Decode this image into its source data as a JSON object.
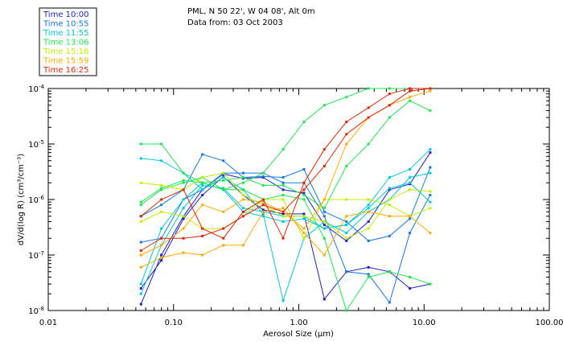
{
  "chart_data": {
    "type": "line",
    "title": "PML, N 50 22', W 04 08', Alt 0m",
    "subtitle": "Data from: 03 Oct 2003",
    "xlabel": "Aerosol Size (μm)",
    "ylabel": "dV/d(log R) (cm³/cm⁻³)",
    "x_scale": "log",
    "y_scale": "log",
    "xlim": [
      0.01,
      100
    ],
    "ylim": [
      1e-08,
      0.0001
    ],
    "x_ticks": [
      {
        "value": 0.01,
        "label": "0.01"
      },
      {
        "value": 0.1,
        "label": "0.10"
      },
      {
        "value": 1,
        "label": "1.00"
      },
      {
        "value": 10,
        "label": "10.00"
      },
      {
        "value": 100,
        "label": "100.00"
      }
    ],
    "y_ticks": [
      {
        "value": 1e-08,
        "mant": "10",
        "exp": "-8"
      },
      {
        "value": 1e-07,
        "mant": "10",
        "exp": "-7"
      },
      {
        "value": 1e-06,
        "mant": "10",
        "exp": "-6"
      },
      {
        "value": 1e-05,
        "mant": "10",
        "exp": "-5"
      },
      {
        "value": 0.0001,
        "mant": "10",
        "exp": "-4"
      }
    ],
    "legend_position": "top-left",
    "x": [
      0.055,
      0.08,
      0.12,
      0.17,
      0.25,
      0.36,
      0.52,
      0.75,
      1.1,
      1.6,
      2.4,
      3.6,
      5.3,
      7.7,
      11.2
    ],
    "series": [
      {
        "name": "Time 10:00",
        "color": "#1e1ec8",
        "values": [
          1.3e-08,
          1e-07,
          5e-07,
          1.5e-06,
          2.9e-06,
          2.4e-06,
          2.5e-06,
          1.5e-06,
          1.3e-06,
          3.5e-07,
          1.8e-07,
          4e-07,
          1.5e-06,
          1.9e-06,
          7e-06
        ]
      },
      {
        "name": "Time 10:00",
        "color": "#1e1ec8",
        "values": [
          2.5e-08,
          8e-08,
          4.5e-07,
          1.2e-06,
          2.6e-06,
          1.2e-06,
          6.5e-07,
          5.5e-07,
          5.5e-07,
          1.6e-08,
          5e-08,
          6e-08,
          5e-08,
          2.5e-08,
          3e-08
        ]
      },
      {
        "name": "Time 10:55",
        "color": "#1478e6",
        "values": [
          5e-07,
          8e-07,
          1.5e-06,
          6.5e-06,
          5e-06,
          2.5e-06,
          2.6e-06,
          2.5e-06,
          3.5e-06,
          6e-07,
          4e-07,
          1.8e-07,
          2.2e-07,
          4.5e-07,
          3.8e-06
        ]
      },
      {
        "name": "Time 10:55",
        "color": "#1478e6",
        "values": [
          1.7e-07,
          2e-07,
          1e-06,
          1.5e-06,
          3e-06,
          3e-06,
          3e-06,
          2e-06,
          2e-06,
          5e-07,
          5e-08,
          4.5e-08,
          1.4e-08,
          2.5e-07,
          1.2e-06
        ]
      },
      {
        "name": "Time 11:55",
        "color": "#00c8dc",
        "values": [
          5.5e-06,
          5e-06,
          3e-06,
          1.5e-06,
          2.5e-06,
          1.5e-06,
          5.5e-07,
          1.5e-08,
          2e-07,
          4e-07,
          2.5e-07,
          6e-07,
          1e-06,
          2.5e-06,
          3e-06
        ]
      },
      {
        "name": "Time 11:55",
        "color": "#00c8dc",
        "values": [
          3e-08,
          3e-07,
          1e-06,
          2e-06,
          1.5e-06,
          6e-07,
          5e-07,
          4e-07,
          4.5e-07,
          3e-07,
          3.5e-07,
          8e-07,
          2.5e-06,
          3.5e-06,
          8e-06
        ]
      },
      {
        "name": "Time 11:55",
        "color": "#00c8dc",
        "values": [
          2e-08,
          1.5e-07,
          7e-07,
          1.8e-06,
          1.6e-06,
          7e-07,
          6e-07,
          5e-07,
          5e-07,
          3e-07,
          3.5e-07,
          7e-07,
          1.6e-06,
          2e-06,
          9e-07
        ]
      },
      {
        "name": "Time 13:06",
        "color": "#1ee650",
        "values": [
          1e-05,
          1e-05,
          3e-06,
          2e-06,
          1.5e-06,
          2e-06,
          3e-06,
          8e-06,
          2.5e-05,
          5e-05,
          7e-05,
          0.0001,
          0.0001,
          0.0001,
          0.0001
        ]
      },
      {
        "name": "Time 13:06",
        "color": "#1ee650",
        "values": [
          8e-07,
          1.5e-06,
          2e-06,
          2.5e-06,
          1.5e-06,
          1.5e-06,
          1e-06,
          1.2e-06,
          1e-06,
          2e-07,
          1e-08,
          4e-08,
          5e-08,
          4e-08,
          3e-08
        ]
      },
      {
        "name": "Time 13:06",
        "color": "#1ee650",
        "values": [
          9e-07,
          1.6e-06,
          2.2e-06,
          2e-06,
          2.2e-06,
          2.5e-06,
          1.8e-06,
          1.8e-06,
          1.2e-06,
          7e-07,
          4e-06,
          1e-05,
          3e-05,
          6e-05,
          4e-05
        ]
      },
      {
        "name": "Time 15:16",
        "color": "#bef000",
        "values": [
          2e-06,
          1.8e-06,
          1.5e-06,
          2.5e-06,
          3e-06,
          1.2e-06,
          8e-07,
          5e-07,
          5e-07,
          4e-07,
          2e-07,
          3e-07,
          1e-06,
          1.5e-06,
          1.4e-06
        ]
      },
      {
        "name": "Time 15:16",
        "color": "#bef000",
        "values": [
          4e-07,
          6e-07,
          5e-07,
          3e-07,
          3e-07,
          5e-07,
          1e-06,
          1e-06,
          2e-07,
          1e-06,
          1e-06,
          1e-06,
          8e-07,
          5e-07,
          7e-07
        ]
      },
      {
        "name": "Time 15:59",
        "color": "#ffaa00",
        "values": [
          6e-08,
          9e-08,
          1.1e-07,
          1e-07,
          1.5e-07,
          1.5e-07,
          6e-07,
          7e-07,
          2.5e-07,
          1e-07,
          5e-07,
          6e-07,
          5e-07,
          5e-07,
          2.5e-07
        ]
      },
      {
        "name": "Time 15:59",
        "color": "#ffaa00",
        "values": [
          1e-07,
          1.5e-07,
          3e-07,
          8e-07,
          6e-07,
          1e-06,
          9e-07,
          6e-07,
          3e-07,
          1e-06,
          1e-05,
          3e-05,
          5e-05,
          7e-05,
          9e-05
        ]
      },
      {
        "name": "Time 16:25",
        "color": "#dc2800",
        "values": [
          5e-07,
          1e-06,
          1.5e-06,
          3e-07,
          2e-07,
          6e-07,
          1e-06,
          2e-07,
          2e-06,
          8e-06,
          2.5e-05,
          4.5e-05,
          8e-05,
          0.0001,
          0.0001
        ]
      },
      {
        "name": "Time 16:25",
        "color": "#dc2800",
        "values": [
          1.2e-07,
          2e-07,
          2e-07,
          2.2e-07,
          3e-07,
          5e-07,
          8e-07,
          6e-07,
          1.5e-06,
          4e-06,
          1.5e-05,
          3e-05,
          5e-05,
          9e-05,
          0.0001
        ]
      }
    ]
  },
  "legend": [
    {
      "label": "Time 10:00",
      "color": "#1e1ec8"
    },
    {
      "label": "Time 10:55",
      "color": "#1478e6"
    },
    {
      "label": "Time 11:55",
      "color": "#00c8dc"
    },
    {
      "label": "Time 13:06",
      "color": "#1ee650"
    },
    {
      "label": "Time 15:16",
      "color": "#bef000"
    },
    {
      "label": "Time 15:59",
      "color": "#ffaa00"
    },
    {
      "label": "Time 16:25",
      "color": "#dc2800"
    }
  ]
}
